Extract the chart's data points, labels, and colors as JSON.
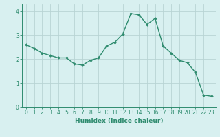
{
  "x": [
    0,
    1,
    2,
    3,
    4,
    5,
    6,
    7,
    8,
    9,
    10,
    11,
    12,
    13,
    14,
    15,
    16,
    17,
    18,
    19,
    20,
    21,
    22,
    23
  ],
  "y": [
    2.6,
    2.45,
    2.25,
    2.15,
    2.05,
    2.05,
    1.8,
    1.75,
    1.95,
    2.05,
    2.55,
    2.7,
    3.05,
    3.9,
    3.85,
    3.45,
    3.7,
    2.55,
    2.25,
    1.95,
    1.85,
    1.45,
    0.5,
    0.45
  ],
  "line_color": "#2e8b6e",
  "marker": "D",
  "marker_size": 1.8,
  "line_width": 1.0,
  "background_color": "#d8f0f0",
  "grid_color": "#b8d4d4",
  "xlabel": "Humidex (Indice chaleur)",
  "xlim": [
    -0.5,
    23.5
  ],
  "ylim": [
    0,
    4.3
  ],
  "yticks": [
    0,
    1,
    2,
    3,
    4
  ],
  "xticks": [
    0,
    1,
    2,
    3,
    4,
    5,
    6,
    7,
    8,
    9,
    10,
    11,
    12,
    13,
    14,
    15,
    16,
    17,
    18,
    19,
    20,
    21,
    22,
    23
  ],
  "xtick_labels": [
    "0",
    "1",
    "2",
    "3",
    "4",
    "5",
    "6",
    "7",
    "8",
    "9",
    "10",
    "11",
    "12",
    "13",
    "14",
    "15",
    "16",
    "17",
    "18",
    "19",
    "20",
    "21",
    "22",
    "23"
  ],
  "xlabel_fontsize": 6.5,
  "tick_fontsize": 5.5
}
